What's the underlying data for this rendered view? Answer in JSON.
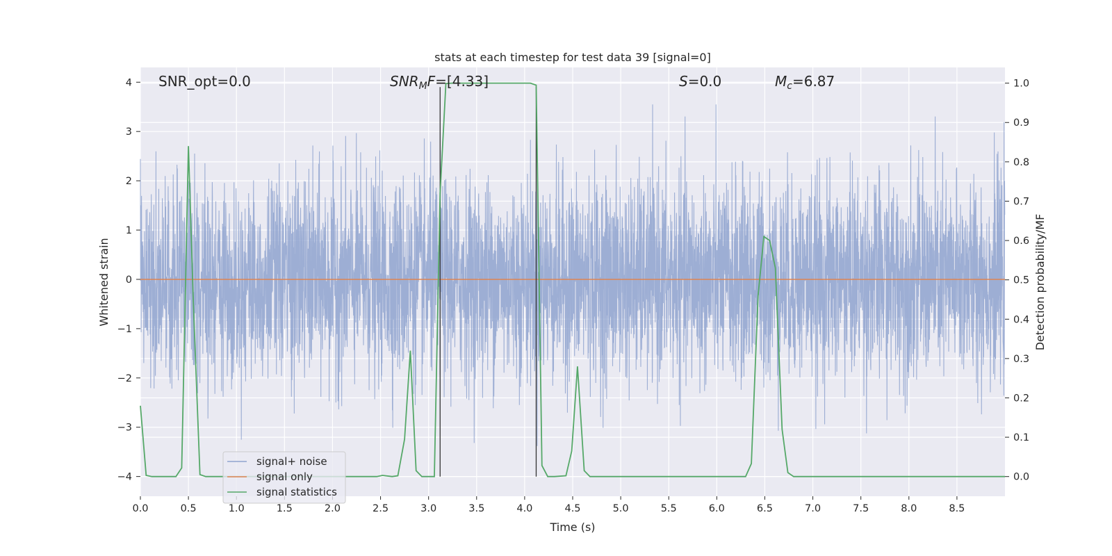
{
  "chart_data": {
    "type": "line",
    "title": "stats at each timestep for test data 39 [signal=0]",
    "xlabel": "Time (s)",
    "ylabel_left": "Whitened strain",
    "ylabel_right": "Detection probability/MF",
    "xlim": [
      0.0,
      9.0
    ],
    "ylim_left": [
      -4.4,
      4.3
    ],
    "ylim_right": [
      -0.05,
      1.04
    ],
    "xticks": [
      "0.0",
      "0.5",
      "1.0",
      "1.5",
      "2.0",
      "2.5",
      "3.0",
      "3.5",
      "4.0",
      "4.5",
      "5.0",
      "5.5",
      "6.0",
      "6.5",
      "7.0",
      "7.5",
      "8.0",
      "8.5"
    ],
    "yticks_left": [
      "4",
      "3",
      "2",
      "1",
      "0",
      "−1",
      "−2",
      "−3",
      "−4"
    ],
    "yticks_right": [
      "1.0",
      "0.9",
      "0.8",
      "0.7",
      "0.6",
      "0.5",
      "0.4",
      "0.3",
      "0.2",
      "0.1",
      "0.0"
    ],
    "grid": true,
    "legend_position": "lower-left",
    "annotations": {
      "snr_opt": "SNR_opt=0.0",
      "snr_mf_sym": "SNR",
      "snr_mf_sub": "M",
      "snr_mf_sym2": "F",
      "snr_mf_val": "=[4.33]",
      "s_sym": "S",
      "s_val": "=0.0",
      "mc_sym": "M",
      "mc_sub": "c",
      "mc_val": "=6.87"
    },
    "vlines_x": [
      3.12,
      4.12
    ],
    "series": [
      {
        "name": "signal+ noise",
        "color": "#8fa3cf",
        "axis": "left",
        "kind": "noise",
        "sample_rate": 512,
        "sigma": 1.0,
        "x_start": 0.0,
        "x_end": 9.0
      },
      {
        "name": "signal only",
        "color": "#dd8452",
        "axis": "left",
        "x": [
          0.0,
          9.0
        ],
        "y": [
          0.0,
          0.0
        ]
      },
      {
        "name": "signal statistics",
        "color": "#55a868",
        "axis": "right",
        "x": [
          0.0,
          0.06,
          0.12,
          0.37,
          0.43,
          0.5,
          0.55,
          0.62,
          0.68,
          2.46,
          2.52,
          2.62,
          2.68,
          2.75,
          2.81,
          2.87,
          2.93,
          3.0,
          3.06,
          3.12,
          3.18,
          3.24,
          4.06,
          4.12,
          4.18,
          4.24,
          4.31,
          4.43,
          4.49,
          4.55,
          4.62,
          4.68,
          6.3,
          6.36,
          6.43,
          6.49,
          6.55,
          6.61,
          6.68,
          6.74,
          6.8,
          9.0
        ],
        "y": [
          0.18,
          0.003,
          0.0,
          0.0,
          0.022,
          0.84,
          0.45,
          0.005,
          0.0,
          0.0,
          0.003,
          0.0,
          0.002,
          0.095,
          0.32,
          0.015,
          0.0,
          0.0,
          0.0,
          0.72,
          0.999,
          1.0,
          1.0,
          0.995,
          0.028,
          0.0,
          0.0,
          0.002,
          0.065,
          0.28,
          0.015,
          0.0,
          0.0,
          0.033,
          0.46,
          0.61,
          0.6,
          0.53,
          0.12,
          0.01,
          0.0,
          0.0
        ]
      }
    ]
  }
}
